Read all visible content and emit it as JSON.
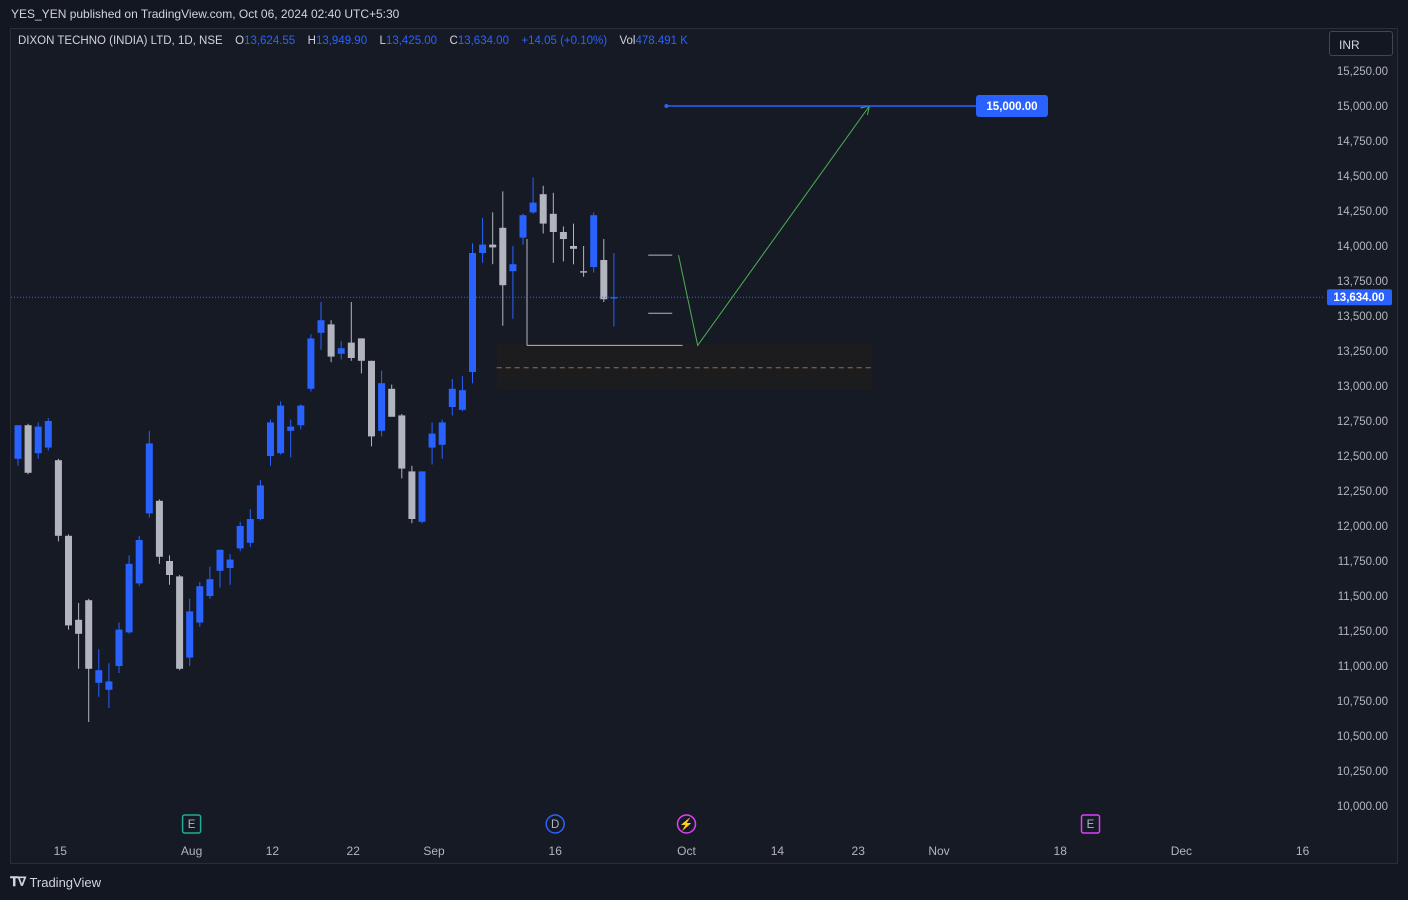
{
  "header": {
    "published": "YES_YEN published on TradingView.com, Oct 06, 2024 02:40 UTC+5:30"
  },
  "legend": {
    "symbol": "DIXON TECHNO (INDIA) LTD, 1D, NSE",
    "open_label": "O",
    "open": "13,624.55",
    "high_label": "H",
    "high": "13,949.90",
    "low_label": "L",
    "low": "13,425.00",
    "close_label": "C",
    "close": "13,634.00",
    "change": "+14.05 (+0.10%)",
    "vol_label": "Vol",
    "vol": "478.491 K"
  },
  "currency": "INR",
  "footer": {
    "brand": "TradingView"
  },
  "colors": {
    "up": "#2962ff",
    "down": "#b2b5be",
    "background": "#161a25",
    "price_line": "#2962ff",
    "arrow": "#4caf50",
    "target_tag": "#2962ff"
  },
  "chart_data": {
    "type": "candlestick",
    "y_axis": {
      "min": 10000,
      "max": 15250,
      "step": 250,
      "scale": "linear",
      "side": "right",
      "tick_labels": [
        "15,250.00",
        "15,000.00",
        "14,750.00",
        "14,500.00",
        "14,250.00",
        "14,000.00",
        "13,750.00",
        "13,500.00",
        "13,250.00",
        "13,000.00",
        "12,750.00",
        "12,500.00",
        "12,250.00",
        "12,000.00",
        "11,750.00",
        "11,500.00",
        "11,250.00",
        "11,000.00",
        "10,750.00",
        "10,500.00",
        "10,250.00",
        "10,000.00"
      ]
    },
    "x_axis": {
      "tick_labels": [
        "15",
        "Aug",
        "12",
        "22",
        "Sep",
        "16",
        "Oct",
        "14",
        "23",
        "Nov",
        "18",
        "Dec",
        "16"
      ],
      "tick_index": [
        3,
        16,
        24,
        32,
        40,
        52,
        65,
        74,
        82,
        90,
        102,
        114,
        126
      ]
    },
    "candles": [
      {
        "o": 12480,
        "h": 12680,
        "l": 12430,
        "c": 12720
      },
      {
        "o": 12720,
        "h": 12730,
        "l": 12370,
        "c": 12380
      },
      {
        "o": 12520,
        "h": 12740,
        "l": 12480,
        "c": 12710
      },
      {
        "o": 12560,
        "h": 12770,
        "l": 12540,
        "c": 12750
      },
      {
        "o": 12470,
        "h": 12480,
        "l": 11890,
        "c": 11930
      },
      {
        "o": 11930,
        "h": 11940,
        "l": 11260,
        "c": 11290
      },
      {
        "o": 11330,
        "h": 11450,
        "l": 10980,
        "c": 11230
      },
      {
        "o": 11470,
        "h": 11480,
        "l": 10600,
        "c": 10980
      },
      {
        "o": 10880,
        "h": 11120,
        "l": 10780,
        "c": 10970
      },
      {
        "o": 10830,
        "h": 11020,
        "l": 10700,
        "c": 10890
      },
      {
        "o": 11000,
        "h": 11310,
        "l": 10950,
        "c": 11260
      },
      {
        "o": 11240,
        "h": 11790,
        "l": 11230,
        "c": 11730
      },
      {
        "o": 11590,
        "h": 11930,
        "l": 11570,
        "c": 11900
      },
      {
        "o": 12090,
        "h": 12680,
        "l": 12060,
        "c": 12590
      },
      {
        "o": 12180,
        "h": 12190,
        "l": 11730,
        "c": 11780
      },
      {
        "o": 11750,
        "h": 11790,
        "l": 11580,
        "c": 11650
      },
      {
        "o": 11640,
        "h": 11650,
        "l": 10970,
        "c": 10980
      },
      {
        "o": 11060,
        "h": 11480,
        "l": 11000,
        "c": 11390
      },
      {
        "o": 11310,
        "h": 11600,
        "l": 11280,
        "c": 11570
      },
      {
        "o": 11500,
        "h": 11710,
        "l": 11480,
        "c": 11620
      },
      {
        "o": 11680,
        "h": 11830,
        "l": 11560,
        "c": 11830
      },
      {
        "o": 11700,
        "h": 11800,
        "l": 11580,
        "c": 11760
      },
      {
        "o": 11840,
        "h": 12030,
        "l": 11820,
        "c": 12000
      },
      {
        "o": 11880,
        "h": 12120,
        "l": 11850,
        "c": 12050
      },
      {
        "o": 12050,
        "h": 12330,
        "l": 12040,
        "c": 12290
      },
      {
        "o": 12500,
        "h": 12760,
        "l": 12430,
        "c": 12740
      },
      {
        "o": 12520,
        "h": 12890,
        "l": 12510,
        "c": 12860
      },
      {
        "o": 12680,
        "h": 12760,
        "l": 12490,
        "c": 12710
      },
      {
        "o": 12720,
        "h": 12870,
        "l": 12690,
        "c": 12860
      },
      {
        "o": 12980,
        "h": 13370,
        "l": 12960,
        "c": 13340
      },
      {
        "o": 13380,
        "h": 13600,
        "l": 13260,
        "c": 13470
      },
      {
        "o": 13440,
        "h": 13470,
        "l": 13170,
        "c": 13210
      },
      {
        "o": 13230,
        "h": 13320,
        "l": 13190,
        "c": 13270
      },
      {
        "o": 13310,
        "h": 13600,
        "l": 13180,
        "c": 13200
      },
      {
        "o": 13340,
        "h": 13340,
        "l": 13090,
        "c": 13180
      },
      {
        "o": 13180,
        "h": 13180,
        "l": 12570,
        "c": 12640
      },
      {
        "o": 12680,
        "h": 13110,
        "l": 12640,
        "c": 13020
      },
      {
        "o": 12980,
        "h": 13010,
        "l": 12800,
        "c": 12780
      },
      {
        "o": 12790,
        "h": 12800,
        "l": 12340,
        "c": 12410
      },
      {
        "o": 12390,
        "h": 12430,
        "l": 12020,
        "c": 12050
      },
      {
        "o": 12030,
        "h": 12390,
        "l": 12020,
        "c": 12390
      },
      {
        "o": 12560,
        "h": 12740,
        "l": 12440,
        "c": 12660
      },
      {
        "o": 12580,
        "h": 12760,
        "l": 12480,
        "c": 12740
      },
      {
        "o": 12850,
        "h": 13050,
        "l": 12790,
        "c": 12980
      },
      {
        "o": 12830,
        "h": 13070,
        "l": 12820,
        "c": 12970
      },
      {
        "o": 13100,
        "h": 14020,
        "l": 13020,
        "c": 13950
      },
      {
        "o": 13950,
        "h": 14200,
        "l": 13880,
        "c": 14010
      },
      {
        "o": 14010,
        "h": 14240,
        "l": 13870,
        "c": 13990
      },
      {
        "o": 14130,
        "h": 14390,
        "l": 13430,
        "c": 13720
      },
      {
        "o": 13820,
        "h": 14000,
        "l": 13480,
        "c": 13870
      },
      {
        "o": 14060,
        "h": 14230,
        "l": 14010,
        "c": 14220
      },
      {
        "o": 14240,
        "h": 14490,
        "l": 14230,
        "c": 14310
      },
      {
        "o": 14370,
        "h": 14430,
        "l": 14090,
        "c": 14160
      },
      {
        "o": 14230,
        "h": 14380,
        "l": 13880,
        "c": 14100
      },
      {
        "o": 14100,
        "h": 14140,
        "l": 13890,
        "c": 14050
      },
      {
        "o": 14000,
        "h": 14160,
        "l": 13870,
        "c": 13980
      },
      {
        "o": 13820,
        "h": 14000,
        "l": 13780,
        "c": 13810
      },
      {
        "o": 13850,
        "h": 14240,
        "l": 13810,
        "c": 14220
      },
      {
        "o": 13900,
        "h": 14050,
        "l": 13600,
        "c": 13620
      },
      {
        "o": 13624.55,
        "h": 13949.9,
        "l": 13425,
        "c": 13634
      }
    ],
    "last_price": 13634,
    "last_price_label": "13,634.00",
    "target_price": 15000,
    "target_label": "15,000.00",
    "support_zone": {
      "low": 12970,
      "high": 13300,
      "mid": 13130
    },
    "projection": {
      "from_price": 13935,
      "via_price": 13290,
      "to_price": 15000
    },
    "event_markers": [
      {
        "label": "E",
        "bar": 16,
        "color": "#22ab94"
      },
      {
        "label": "D",
        "bar": 52,
        "color": "#2962ff"
      },
      {
        "label": "⚡",
        "bar": 65,
        "color": "#e040fb"
      },
      {
        "label": "E",
        "bar": 105,
        "color": "#e040fb"
      }
    ]
  }
}
